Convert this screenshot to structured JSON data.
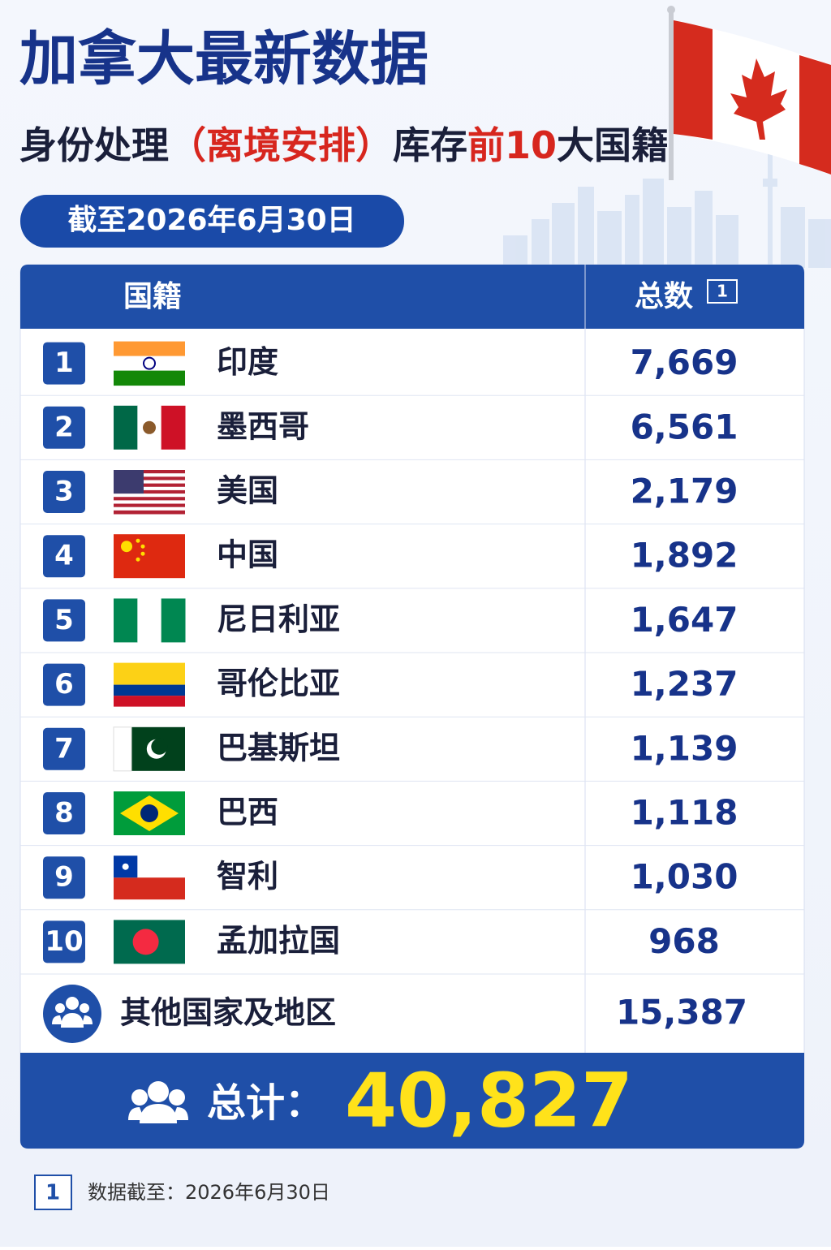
{
  "header": {
    "title": "加拿大最新数据",
    "subtitle": [
      "身份处理",
      "（离境安排）",
      "库存",
      "前10",
      "大国籍"
    ],
    "date_badge": "截至2026年6月30日"
  },
  "table": {
    "columns": [
      "国籍",
      "总数"
    ],
    "column_note": 1,
    "rows": [
      {
        "rank": 1,
        "country": "印度",
        "total": "7,669"
      },
      {
        "rank": 2,
        "country": "墨西哥",
        "total": "6,561"
      },
      {
        "rank": 3,
        "country": "美国",
        "total": "2,179"
      },
      {
        "rank": 4,
        "country": "中国",
        "total": "1,892"
      },
      {
        "rank": 5,
        "country": "尼日利亚",
        "total": "1,647"
      },
      {
        "rank": 6,
        "country": "哥伦比亚",
        "total": "1,237"
      },
      {
        "rank": 7,
        "country": "巴基斯坦",
        "total": "1,139"
      },
      {
        "rank": 8,
        "country": "巴西",
        "total": "1,118"
      },
      {
        "rank": 9,
        "country": "智利",
        "total": "1,030"
      },
      {
        "rank": 10,
        "country": "孟加拉国",
        "total": "968"
      }
    ],
    "others": {
      "label": "其他国家及地区",
      "total": "15,387"
    },
    "total": {
      "label": "总计：",
      "value": "40,827"
    }
  },
  "footnote": {
    "marker": 1,
    "text": "数据截至：2026年6月30日"
  }
}
